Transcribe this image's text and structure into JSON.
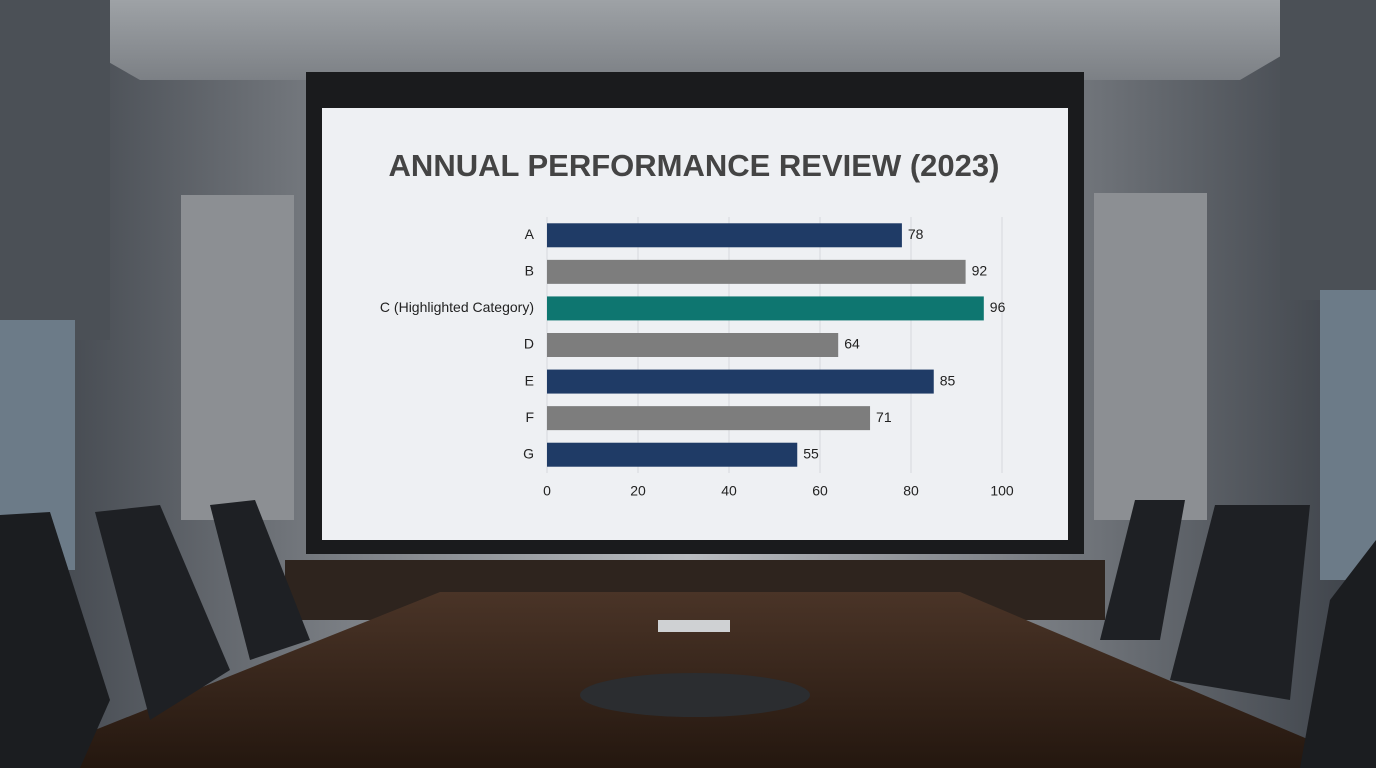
{
  "chart_data": {
    "type": "bar",
    "orientation": "horizontal",
    "title": "ANNUAL PERFORMANCE REVIEW (2023)",
    "categories": [
      "A",
      "B",
      "C (Highlighted Category)",
      "D",
      "E",
      "F",
      "G"
    ],
    "values": [
      78,
      92,
      96,
      64,
      85,
      71,
      55
    ],
    "colors": [
      "#1f3b66",
      "#7d7d7d",
      "#0e7670",
      "#7d7d7d",
      "#1f3b66",
      "#7d7d7d",
      "#1f3b66"
    ],
    "xlim": [
      0,
      100
    ],
    "xticks": [
      0,
      20,
      40,
      60,
      80,
      100
    ],
    "grid": true
  }
}
